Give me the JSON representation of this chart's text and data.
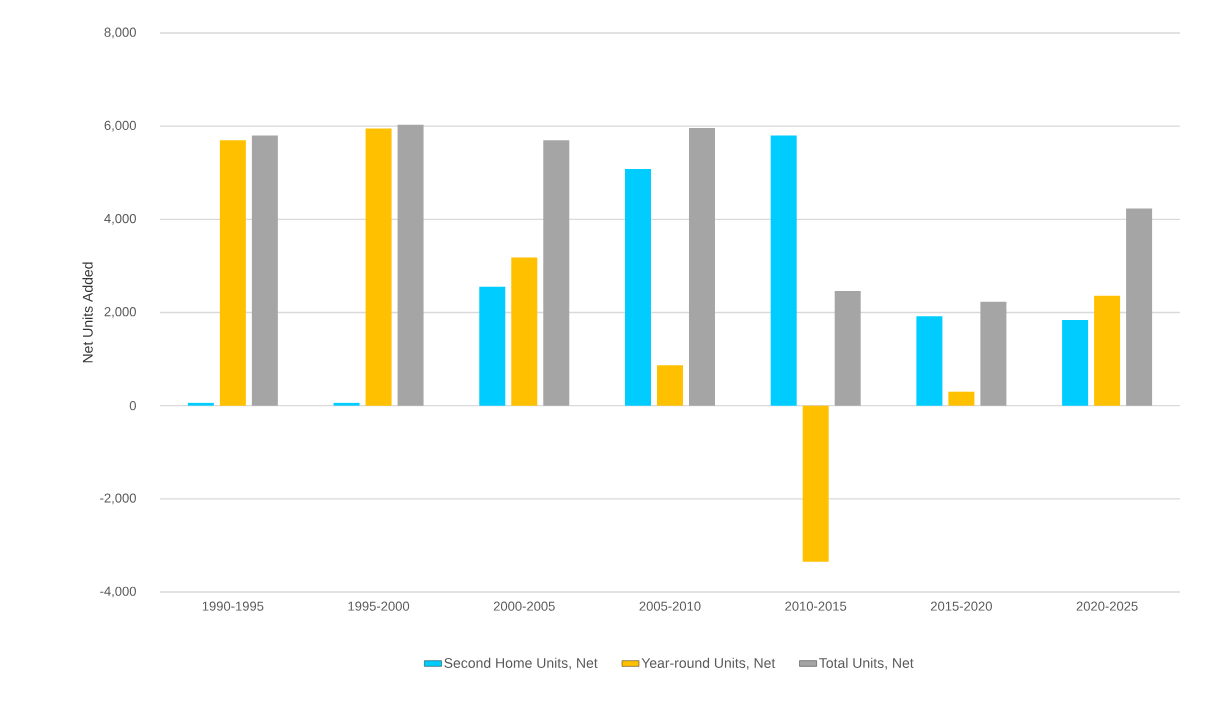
{
  "chart_data": {
    "type": "bar",
    "ylabel": "Net Units Added",
    "categories": [
      "1990-1995",
      "1995-2000",
      "2000-2005",
      "2005-2010",
      "2010-2015",
      "2015-2020",
      "2020-2025"
    ],
    "series": [
      {
        "name": "Second Home Units, Net",
        "color": "#00ccff",
        "values": [
          60,
          60,
          2550,
          5080,
          5800,
          1920,
          1840
        ]
      },
      {
        "name": "Year-round Units, Net",
        "color": "#ffc000",
        "values": [
          5700,
          5950,
          3180,
          870,
          -3350,
          300,
          2360
        ]
      },
      {
        "name": "Total Units, Net",
        "color": "#a5a5a5",
        "values": [
          5800,
          6030,
          5700,
          5960,
          2460,
          2230,
          4230
        ]
      }
    ],
    "ylim": [
      -4000,
      8000
    ],
    "yticks": [
      {
        "value": -4000,
        "label": "-4,000"
      },
      {
        "value": -2000,
        "label": "-2,000"
      },
      0,
      {
        "value": 2000,
        "label": "2,000"
      },
      {
        "value": 4000,
        "label": "4,000"
      },
      {
        "value": 6000,
        "label": "6,000"
      },
      {
        "value": 8000,
        "label": "8,000"
      }
    ],
    "grid": "y",
    "legend": "bottom"
  }
}
